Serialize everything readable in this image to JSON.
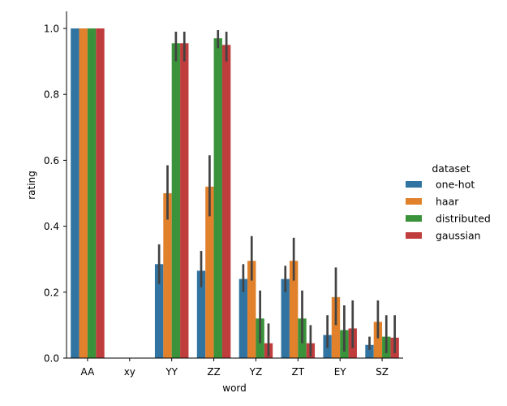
{
  "chart_data": {
    "type": "bar",
    "xlabel": "word",
    "ylabel": "rating",
    "ylim": [
      0,
      1.05
    ],
    "yticks": [
      "0.0",
      "0.2",
      "0.4",
      "0.6",
      "0.8",
      "1.0"
    ],
    "categories": [
      "AA",
      "xy",
      "YY",
      "ZZ",
      "YZ",
      "ZT",
      "EY",
      "SZ"
    ],
    "legend_title": "dataset",
    "legend_position": "right",
    "series": [
      {
        "name": "one-hot",
        "color": "#3274a1",
        "values": [
          1.0,
          null,
          0.285,
          0.265,
          0.24,
          0.24,
          0.07,
          0.04
        ],
        "ci": [
          [
            1.0,
            1.0
          ],
          null,
          [
            0.225,
            0.345
          ],
          [
            0.215,
            0.325
          ],
          [
            0.2,
            0.285
          ],
          [
            0.2,
            0.28
          ],
          [
            0.03,
            0.13
          ],
          [
            0.025,
            0.065
          ]
        ]
      },
      {
        "name": "haar",
        "color": "#e1812c",
        "values": [
          1.0,
          null,
          0.5,
          0.52,
          0.295,
          0.295,
          0.185,
          0.11
        ],
        "ci": [
          [
            1.0,
            1.0
          ],
          null,
          [
            0.42,
            0.585
          ],
          [
            0.43,
            0.615
          ],
          [
            0.235,
            0.37
          ],
          [
            0.235,
            0.365
          ],
          [
            0.1,
            0.275
          ],
          [
            0.06,
            0.175
          ]
        ]
      },
      {
        "name": "distributed",
        "color": "#3a923a",
        "values": [
          1.0,
          null,
          0.955,
          0.97,
          0.12,
          0.12,
          0.085,
          0.065
        ],
        "ci": [
          [
            1.0,
            1.0
          ],
          null,
          [
            0.9,
            0.99
          ],
          [
            0.94,
            0.995
          ],
          [
            0.045,
            0.205
          ],
          [
            0.045,
            0.205
          ],
          [
            0.02,
            0.16
          ],
          [
            0.015,
            0.13
          ]
        ]
      },
      {
        "name": "gaussian",
        "color": "#c03d3e",
        "values": [
          1.0,
          null,
          0.955,
          0.95,
          0.045,
          0.045,
          0.09,
          0.062
        ],
        "ci": [
          [
            1.0,
            1.0
          ],
          null,
          [
            0.9,
            0.99
          ],
          [
            0.9,
            0.99
          ],
          [
            0.005,
            0.105
          ],
          [
            0.005,
            0.1
          ],
          [
            0.03,
            0.175
          ],
          [
            0.015,
            0.13
          ]
        ]
      }
    ]
  }
}
